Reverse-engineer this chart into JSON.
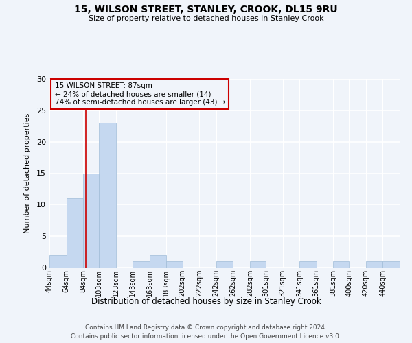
{
  "title": "15, WILSON STREET, STANLEY, CROOK, DL15 9RU",
  "subtitle": "Size of property relative to detached houses in Stanley Crook",
  "xlabel": "Distribution of detached houses by size in Stanley Crook",
  "ylabel": "Number of detached properties",
  "bin_labels": [
    "44sqm",
    "64sqm",
    "84sqm",
    "103sqm",
    "123sqm",
    "143sqm",
    "163sqm",
    "183sqm",
    "202sqm",
    "222sqm",
    "242sqm",
    "262sqm",
    "282sqm",
    "301sqm",
    "321sqm",
    "341sqm",
    "361sqm",
    "381sqm",
    "400sqm",
    "420sqm",
    "440sqm"
  ],
  "bar_heights": [
    2,
    11,
    15,
    23,
    0,
    1,
    2,
    1,
    0,
    0,
    1,
    0,
    1,
    0,
    0,
    1,
    0,
    1,
    0,
    1,
    1
  ],
  "bar_color": "#c5d8f0",
  "bar_edgecolor": "#a0bcd8",
  "reference_line_x": 87,
  "annotation_title": "15 WILSON STREET: 87sqm",
  "annotation_line1": "← 24% of detached houses are smaller (14)",
  "annotation_line2": "74% of semi-detached houses are larger (43) →",
  "annotation_box_edgecolor": "#cc0000",
  "reference_line_color": "#cc0000",
  "ylim": [
    0,
    30
  ],
  "yticks": [
    0,
    5,
    10,
    15,
    20,
    25,
    30
  ],
  "footer1": "Contains HM Land Registry data © Crown copyright and database right 2024.",
  "footer2": "Contains public sector information licensed under the Open Government Licence v3.0.",
  "background_color": "#f0f4fa",
  "grid_color": "#ffffff",
  "bin_edges": [
    44,
    64,
    84,
    103,
    123,
    143,
    163,
    183,
    202,
    222,
    242,
    262,
    282,
    301,
    321,
    341,
    361,
    381,
    400,
    420,
    440,
    460
  ]
}
